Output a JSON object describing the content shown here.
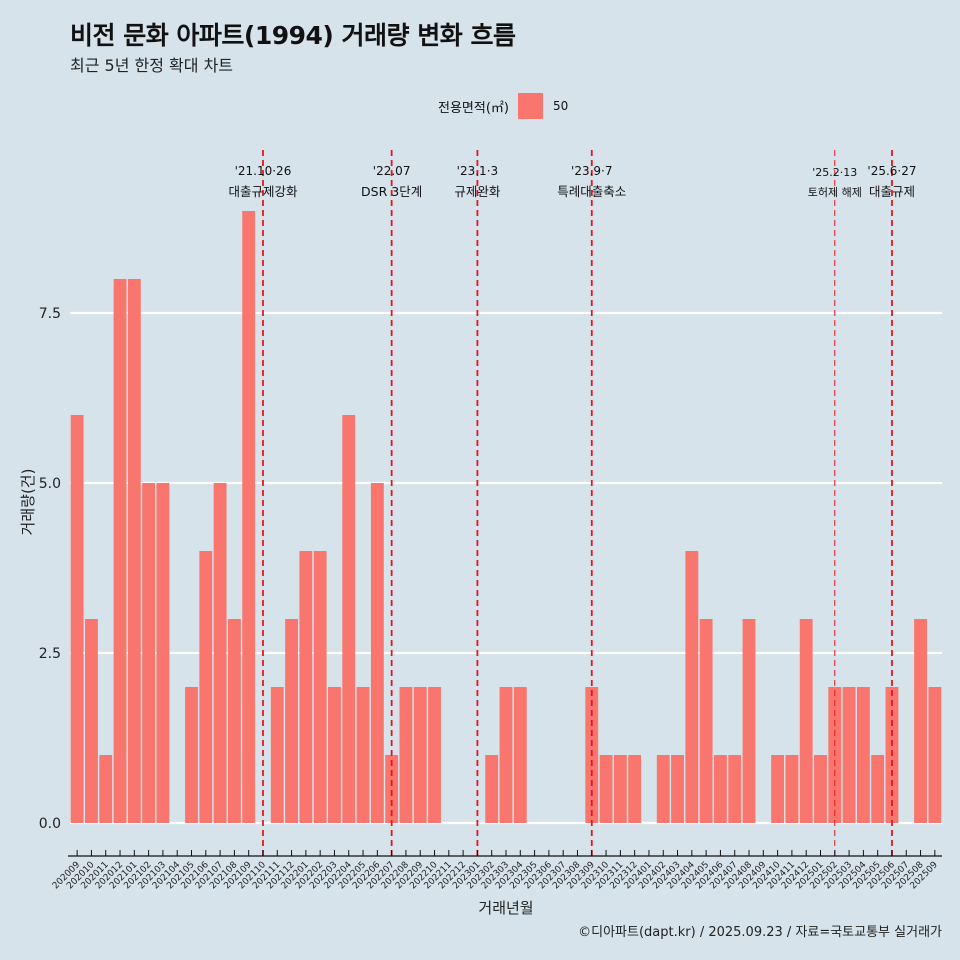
{
  "header": {
    "title": "비전 문화 아파트(1994) 거래량 변화 흐름",
    "subtitle": "최근 5년 한정 확대 차트"
  },
  "legend": {
    "title": "전용면적(㎡)",
    "items": [
      {
        "label": "50",
        "color": "#f8766d"
      }
    ]
  },
  "caption": "©디아파트(dapt.kr) / 2025.09.23 / 자료=국토교통부 실거래가",
  "colors": {
    "background": "#d6e3ea",
    "bar": "#f8766d",
    "gridline": "#ffffff",
    "event_line": "#e8141c"
  },
  "chart_data": {
    "type": "bar",
    "title": "비전 문화 아파트(1994) 거래량 변화 흐름",
    "subtitle": "최근 5년 한정 확대 차트",
    "xlabel": "거래년월",
    "ylabel": "거래량(건)",
    "ylim": [
      -0.4,
      9.3
    ],
    "yticks": [
      0.0,
      2.5,
      5.0,
      7.5
    ],
    "ytick_labels": [
      "0.0",
      "2.5",
      "5.0",
      "7.5"
    ],
    "grid": "horizontal major",
    "legend_position": "top",
    "categories": [
      "202009",
      "202010",
      "202011",
      "202012",
      "202101",
      "202102",
      "202103",
      "202104",
      "202105",
      "202106",
      "202107",
      "202108",
      "202109",
      "202110",
      "202111",
      "202112",
      "202201",
      "202202",
      "202203",
      "202204",
      "202205",
      "202206",
      "202207",
      "202208",
      "202209",
      "202210",
      "202211",
      "202212",
      "202301",
      "202302",
      "202303",
      "202304",
      "202305",
      "202306",
      "202307",
      "202308",
      "202309",
      "202310",
      "202311",
      "202312",
      "202401",
      "202402",
      "202403",
      "202404",
      "202405",
      "202406",
      "202407",
      "202408",
      "202409",
      "202410",
      "202411",
      "202412",
      "202501",
      "202502",
      "202503",
      "202504",
      "202505",
      "202506",
      "202507",
      "202508",
      "202509"
    ],
    "series": [
      {
        "name": "50",
        "values": [
          6,
          3,
          1,
          8,
          8,
          5,
          5,
          0,
          2,
          4,
          5,
          3,
          9,
          0,
          2,
          3,
          4,
          4,
          2,
          6,
          2,
          5,
          1,
          2,
          2,
          2,
          0,
          0,
          0,
          1,
          2,
          2,
          0,
          0,
          0,
          0,
          2,
          1,
          1,
          1,
          0,
          1,
          1,
          4,
          3,
          1,
          1,
          3,
          0,
          1,
          1,
          3,
          1,
          2,
          2,
          2,
          1,
          2,
          0,
          3,
          2
        ]
      }
    ],
    "annotations": [
      {
        "category": "202110",
        "date": "'21.10·26",
        "label": "대출규제강화",
        "style": "bold"
      },
      {
        "category": "202207",
        "date": "'22.07",
        "label": "DSR 3단계",
        "style": "bold"
      },
      {
        "category": "202301",
        "date": "'23.1·3",
        "label": "규제완화",
        "style": "bold"
      },
      {
        "category": "202309",
        "date": "'23.9·7",
        "label": "특례대출축소",
        "style": "bold"
      },
      {
        "category": "202502",
        "date": "'25.2·13",
        "label": "토허제 해제",
        "style": "thin"
      },
      {
        "category": "202506",
        "date": "'25.6·27",
        "label": "대출규제",
        "style": "bold"
      }
    ]
  }
}
